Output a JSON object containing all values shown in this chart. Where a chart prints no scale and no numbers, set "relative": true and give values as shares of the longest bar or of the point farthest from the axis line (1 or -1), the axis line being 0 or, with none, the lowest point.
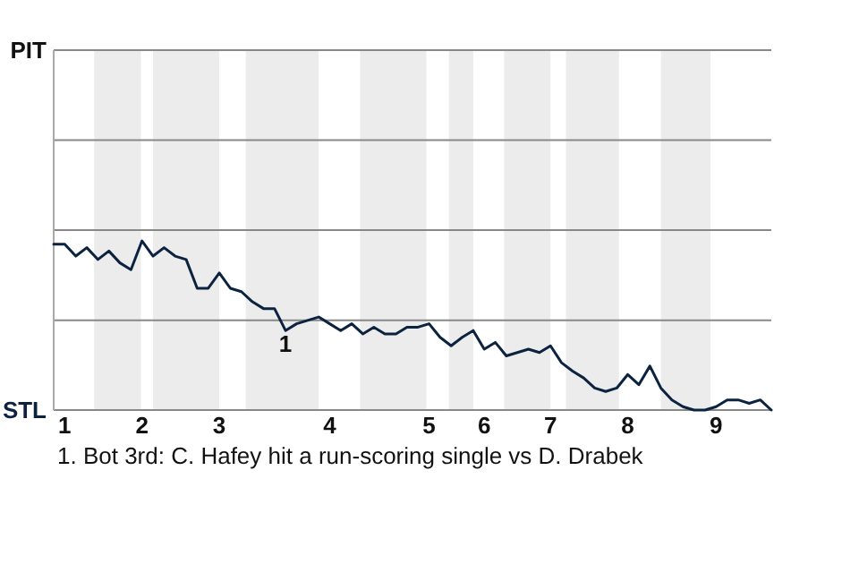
{
  "chart_data": {
    "type": "line",
    "relative": true,
    "categories": [
      null,
      "1",
      null,
      null,
      null,
      null,
      null,
      null,
      "2",
      null,
      null,
      null,
      null,
      null,
      null,
      "3",
      null,
      null,
      null,
      null,
      null,
      null,
      null,
      null,
      null,
      "4",
      null,
      null,
      null,
      null,
      null,
      null,
      null,
      null,
      "5",
      null,
      null,
      null,
      null,
      "6",
      null,
      null,
      null,
      null,
      null,
      "7",
      null,
      null,
      null,
      null,
      null,
      null,
      "8",
      null,
      null,
      null,
      null,
      null,
      null,
      null,
      "9",
      null,
      null,
      null,
      null,
      null
    ],
    "series": [
      {
        "color": "#0c2340",
        "values": [
          0.98,
          0.98,
          0.91,
          0.96,
          0.89,
          0.94,
          0.87,
          0.83,
          1,
          0.91,
          0.96,
          0.91,
          0.89,
          0.72,
          0.72,
          0.81,
          0.72,
          0.7,
          0.64,
          0.6,
          0.6,
          0.47,
          0.51,
          0.53,
          0.55,
          0.51,
          0.47,
          0.51,
          0.45,
          0.49,
          0.45,
          0.45,
          0.49,
          0.49,
          0.51,
          0.43,
          0.38,
          0.43,
          0.47,
          0.36,
          0.4,
          0.32,
          0.34,
          0.36,
          0.34,
          0.38,
          0.28,
          0.23,
          0.19,
          0.13,
          0.11,
          0.13,
          0.21,
          0.15,
          0.26,
          0.13,
          0.06,
          0.02,
          0,
          0,
          0.02,
          0.06,
          0.06,
          0.04,
          0.06,
          0
        ]
      }
    ],
    "ref_lines": [
      {
        "axis": "y",
        "value": 0.53,
        "color": "#888888"
      }
    ],
    "annotations": [
      "PIT",
      "STL",
      {
        "text": "1",
        "y": 0.47
      },
      "1. Bot 3rd: C. Hafey hit a run-scoring single vs D. Drabek"
    ]
  }
}
